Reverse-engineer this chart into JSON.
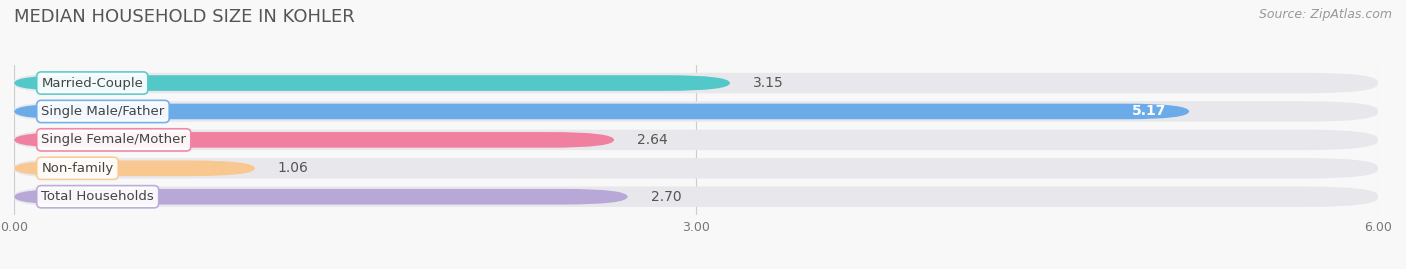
{
  "title": "MEDIAN HOUSEHOLD SIZE IN KOHLER",
  "source": "Source: ZipAtlas.com",
  "categories": [
    "Married-Couple",
    "Single Male/Father",
    "Single Female/Mother",
    "Non-family",
    "Total Households"
  ],
  "values": [
    3.15,
    5.17,
    2.64,
    1.06,
    2.7
  ],
  "bar_colors": [
    "#52c8c8",
    "#6aabe8",
    "#f080a0",
    "#f8c890",
    "#b8a8d8"
  ],
  "bar_bg_color": "#e8e8ec",
  "label_inside": [
    false,
    true,
    false,
    false,
    false
  ],
  "xlim": [
    0,
    6.0
  ],
  "xticks": [
    0.0,
    3.0,
    6.0
  ],
  "xtick_labels": [
    "0.00",
    "3.00",
    "6.00"
  ],
  "title_fontsize": 13,
  "source_fontsize": 9,
  "bar_label_fontsize": 10,
  "category_fontsize": 9.5,
  "figsize": [
    14.06,
    2.69
  ],
  "dpi": 100
}
